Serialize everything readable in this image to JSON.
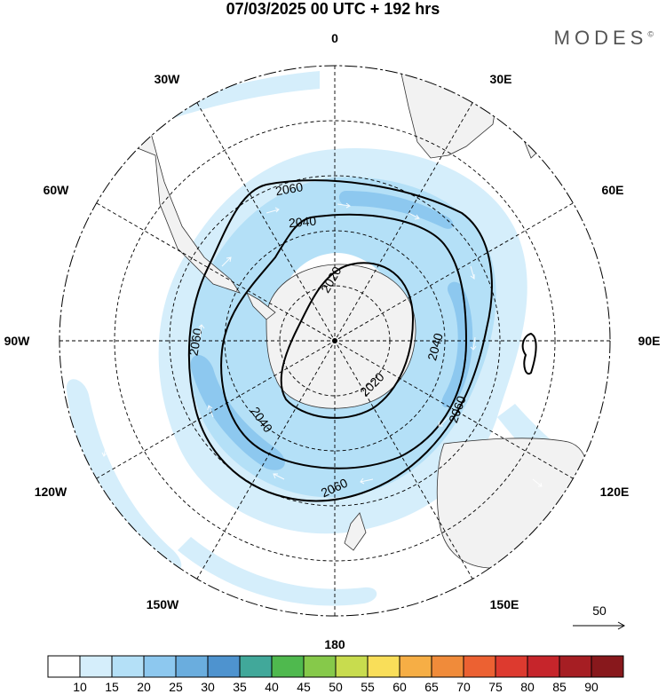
{
  "title": "07/03/2025  00 UTC  + 192 hrs",
  "brand": "MODES",
  "brand_mark": "©",
  "meridian_labels": [
    {
      "text": "0",
      "lon": 0
    },
    {
      "text": "30E",
      "lon": 30
    },
    {
      "text": "60E",
      "lon": 60
    },
    {
      "text": "90E",
      "lon": 90
    },
    {
      "text": "120E",
      "lon": 120
    },
    {
      "text": "150E",
      "lon": 150
    },
    {
      "text": "180",
      "lon": 180
    },
    {
      "text": "150W",
      "lon": -150
    },
    {
      "text": "120W",
      "lon": -120
    },
    {
      "text": "90W",
      "lon": -90
    },
    {
      "text": "60W",
      "lon": -60
    },
    {
      "text": "30W",
      "lon": -30
    }
  ],
  "contours": [
    {
      "value": "2020",
      "labels": [
        "2020",
        "2020"
      ]
    },
    {
      "value": "2040",
      "labels": [
        "2040",
        "2040",
        "2040"
      ]
    },
    {
      "value": "2060",
      "labels": [
        "2060",
        "2060",
        "2060",
        "2060"
      ]
    }
  ],
  "reference_vector": "50",
  "colorbar": {
    "labels": [
      "10",
      "15",
      "20",
      "25",
      "30",
      "35",
      "40",
      "45",
      "50",
      "55",
      "60",
      "65",
      "70",
      "75",
      "80",
      "85",
      "90"
    ],
    "colors": [
      "#ffffff",
      "#d5eefb",
      "#b4e0f7",
      "#8dc8ef",
      "#6aadde",
      "#4e93cf",
      "#41a89a",
      "#4fb94e",
      "#86c94a",
      "#c8dc4e",
      "#f9de59",
      "#f6ae45",
      "#f08b3a",
      "#ec6132",
      "#dd3a2f",
      "#c6252b",
      "#a61e23",
      "#88181c"
    ]
  }
}
